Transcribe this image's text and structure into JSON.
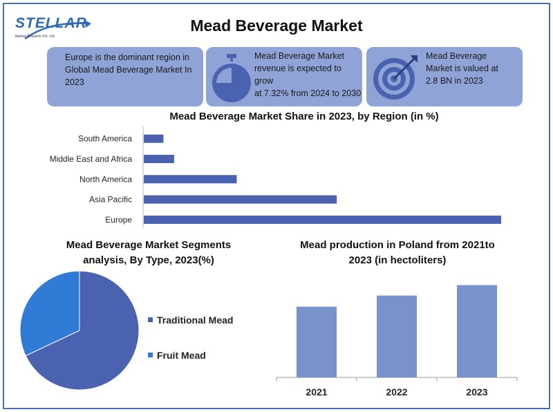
{
  "logo": {
    "name": "STELLAR",
    "tagline": "Market Research Pvt. Ltd."
  },
  "title": "Mead Beverage Market",
  "cards": [
    {
      "text_lines": [
        "Europe is the dominant region in",
        "Global Mead Beverage Market In",
        "2023"
      ]
    },
    {
      "text_lines": [
        "Mead Beverage Market",
        "revenue is expected to grow",
        "at 7.32% from 2024 to 2030"
      ],
      "icon": "stopwatch-icon"
    },
    {
      "text_lines": [
        "Mead Beverage",
        "Market is valued at",
        "2.8 BN in 2023"
      ],
      "icon": "target-icon"
    }
  ],
  "colors": {
    "bar": "#4a62b0",
    "card": "#8fa3d6",
    "pie_traditional": "#4a62b0",
    "pie_fruit": "#2f7bd6",
    "poland_bar": "#7a92cc",
    "frame": "#4a6fb0"
  },
  "chart_data": [
    {
      "type": "bar",
      "orientation": "horizontal",
      "title": "Mead Beverage  Market Share in 2023, by Region (in %)",
      "categories": [
        "South America",
        "Middle East and Africa",
        "North America",
        "Asia Pacific",
        "Europe"
      ],
      "values": [
        5.5,
        8.5,
        26,
        54,
        100
      ],
      "xlim": [
        0,
        100
      ],
      "grid": false
    },
    {
      "type": "pie",
      "title_lines": [
        "Mead Beverage  Market Segments",
        "analysis, By Type, 2023(%)"
      ],
      "labels": [
        "Traditional Mead",
        "Fruit Mead"
      ],
      "values": [
        68,
        32
      ],
      "legend": "right"
    },
    {
      "type": "bar",
      "title_lines": [
        "Mead production in Poland from 2021to",
        "2023 (in hectoliters)"
      ],
      "categories": [
        "2021",
        "2022",
        "2023"
      ],
      "values": [
        95,
        110,
        124
      ],
      "ylim": [
        0,
        130
      ],
      "grid": false
    }
  ]
}
